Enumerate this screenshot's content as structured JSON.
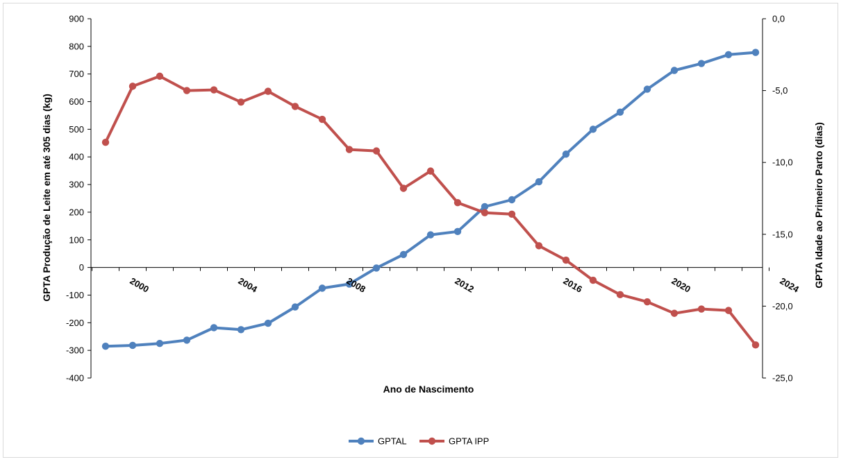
{
  "chart_data": {
    "type": "line",
    "xlabel": "Ano de Nascimento",
    "ylabel_left": "GPTA  Produção de Leite em até 305 dias (kg)",
    "ylabel_right": "GPTA Idade ao Primeiro Parto (dias)",
    "x": [
      1999,
      2000,
      2001,
      2002,
      2003,
      2004,
      2005,
      2006,
      2007,
      2008,
      2009,
      2010,
      2011,
      2012,
      2013,
      2014,
      2015,
      2016,
      2017,
      2018,
      2019,
      2020,
      2021,
      2022,
      2023
    ],
    "x_tick_labels": [
      "2000",
      "2004",
      "2008",
      "2012",
      "2016",
      "2020",
      "2024"
    ],
    "y_left_ticks": [
      "900",
      "800",
      "700",
      "600",
      "500",
      "400",
      "300",
      "200",
      "100",
      "0",
      "-100",
      "-200",
      "-300",
      "-400"
    ],
    "y_right_ticks": [
      "0,0",
      "-5,0",
      "-10,0",
      "-15,0",
      "-20,0",
      "-25,0"
    ],
    "y_left_lim": [
      -400,
      900
    ],
    "y_right_lim": [
      -25,
      0
    ],
    "legend_position": "bottom",
    "grid": false,
    "series": [
      {
        "name": "GPTAL",
        "axis": "left",
        "color": "#4F81BD",
        "values": [
          -285,
          -282,
          -275,
          -263,
          -218,
          -225,
          -202,
          -143,
          -75,
          -60,
          -2,
          47,
          118,
          130,
          220,
          245,
          310,
          410,
          500,
          562,
          645,
          713,
          738,
          770,
          778
        ]
      },
      {
        "name": "GPTA IPP",
        "axis": "right",
        "color": "#C0504D",
        "values": [
          -8.6,
          -4.7,
          -4.0,
          -5.0,
          -4.95,
          -5.8,
          -5.05,
          -6.1,
          -7.0,
          -9.1,
          -9.2,
          -11.8,
          -10.6,
          -12.8,
          -13.5,
          -13.6,
          -15.8,
          -16.8,
          -18.2,
          -19.2,
          -19.7,
          -20.5,
          -20.2,
          -20.3,
          -22.7
        ]
      }
    ]
  }
}
